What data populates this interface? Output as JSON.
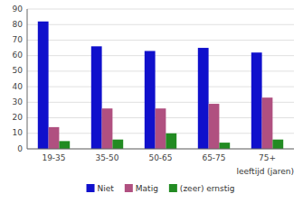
{
  "chart_data": {
    "type": "bar",
    "categories": [
      "19-35",
      "35-50",
      "50-65",
      "65-75",
      "75+"
    ],
    "series": [
      {
        "name": "Niet",
        "color": "#1010CC",
        "values": [
          82,
          66,
          63,
          65,
          62
        ]
      },
      {
        "name": "Matig",
        "color": "#B05080",
        "values": [
          14,
          26,
          26,
          29,
          33
        ]
      },
      {
        "name": "(zeer) ernstig",
        "color": "#228B22",
        "values": [
          5,
          6,
          10,
          4,
          6
        ]
      }
    ],
    "x_label": "leeftijd (jaren)",
    "ylim": [
      0,
      90
    ],
    "yticks": [
      0,
      10,
      20,
      30,
      40,
      50,
      60,
      70,
      80,
      90
    ],
    "grid": true,
    "legend": "bottom"
  }
}
